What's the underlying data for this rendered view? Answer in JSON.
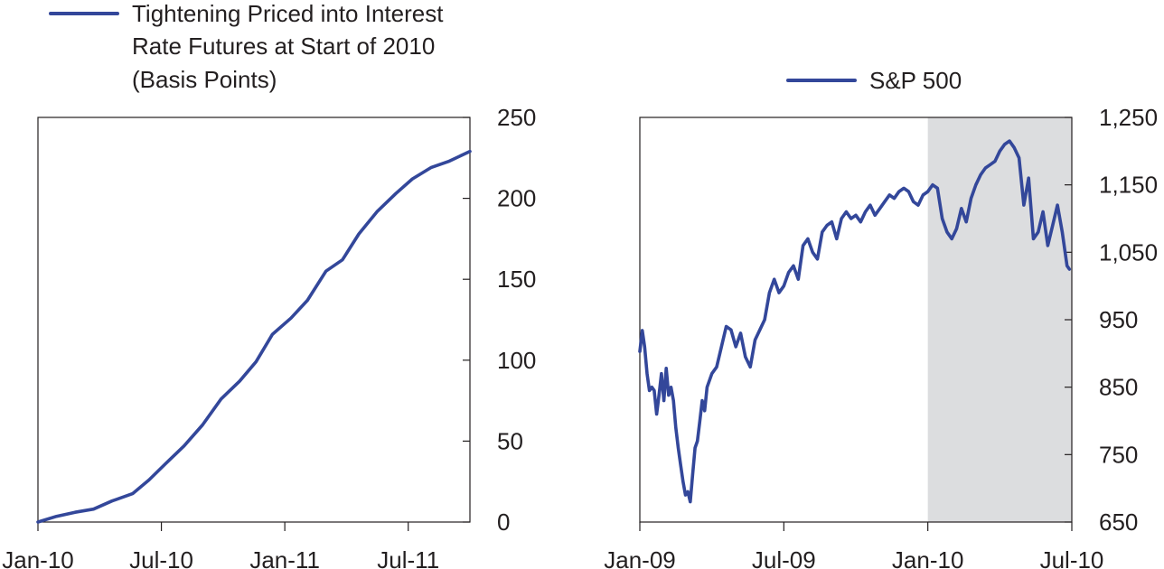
{
  "colors": {
    "series": "#33479a",
    "shade": "#dcdddf",
    "axis": "#231f20"
  },
  "chart_data": [
    {
      "type": "line",
      "title": "",
      "xlabel": "",
      "ylabel": "",
      "x_ticks": [
        "Jan-10",
        "Jul-10",
        "Jan-11",
        "Jul-11"
      ],
      "x_tick_months": [
        0,
        6,
        12,
        18
      ],
      "xlim_months": [
        0,
        21
      ],
      "ylim": [
        0,
        250
      ],
      "y_ticks": [
        0,
        50,
        100,
        150,
        200,
        250
      ],
      "y_tick_labels": [
        "0",
        "50",
        "100",
        "150",
        "200",
        "250"
      ],
      "y_axis_side": "right",
      "legend_position": "top-left",
      "legend_lines": [
        "Tightening Priced into Interest",
        "Rate Futures at Start of 2010",
        "(Basis Points)"
      ],
      "series": [
        {
          "name": "Tightening Priced into Interest Rate Futures at Start of 2010 (Basis Points)",
          "x_months": [
            0,
            0.9,
            1.8,
            2.7,
            3.6,
            4.6,
            5.4,
            6.2,
            7.1,
            8.0,
            8.9,
            9.8,
            10.6,
            11.4,
            12.3,
            13.1,
            14.0,
            14.8,
            15.6,
            16.5,
            17.4,
            18.2,
            19.1,
            20.0,
            21.0
          ],
          "values": [
            0,
            3.5,
            6,
            8,
            13,
            17.5,
            26,
            36,
            47,
            60,
            76,
            87,
            99,
            116,
            126,
            137,
            155,
            162,
            178,
            192,
            203,
            212,
            219,
            223,
            229
          ]
        }
      ]
    },
    {
      "type": "line",
      "title": "",
      "xlabel": "",
      "ylabel": "",
      "x_ticks": [
        "Jan-09",
        "Jul-09",
        "Jan-10",
        "Jul-10"
      ],
      "x_tick_months": [
        0,
        6,
        12,
        18
      ],
      "xlim_months": [
        0,
        18
      ],
      "ylim": [
        650,
        1250
      ],
      "y_ticks": [
        650,
        750,
        850,
        950,
        1050,
        1150,
        1250
      ],
      "y_tick_labels": [
        "650",
        "750",
        "850",
        "950",
        "1,050",
        "1,150",
        "1,250"
      ],
      "y_axis_side": "right",
      "legend_position": "top-center",
      "shaded_region_months": [
        12,
        18
      ],
      "series": [
        {
          "name": "S&P 500",
          "x_months": [
            0,
            0.1,
            0.2,
            0.3,
            0.4,
            0.5,
            0.6,
            0.7,
            0.8,
            0.9,
            1.0,
            1.1,
            1.2,
            1.3,
            1.4,
            1.5,
            1.6,
            1.7,
            1.8,
            1.9,
            2.0,
            2.1,
            2.2,
            2.3,
            2.4,
            2.5,
            2.6,
            2.7,
            2.8,
            3.0,
            3.2,
            3.4,
            3.6,
            3.8,
            4.0,
            4.2,
            4.4,
            4.6,
            4.8,
            5.0,
            5.2,
            5.4,
            5.6,
            5.8,
            6.0,
            6.2,
            6.4,
            6.6,
            6.8,
            7.0,
            7.2,
            7.4,
            7.6,
            7.8,
            8.0,
            8.2,
            8.4,
            8.6,
            8.8,
            9.0,
            9.2,
            9.4,
            9.6,
            9.8,
            10.0,
            10.2,
            10.4,
            10.6,
            10.8,
            11.0,
            11.2,
            11.4,
            11.6,
            11.8,
            12.0,
            12.2,
            12.4,
            12.6,
            12.8,
            13.0,
            13.2,
            13.4,
            13.6,
            13.8,
            14.0,
            14.2,
            14.4,
            14.6,
            14.8,
            15.0,
            15.2,
            15.4,
            15.6,
            15.8,
            16.0,
            16.2,
            16.4,
            16.6,
            16.8,
            17.0,
            17.2,
            17.4,
            17.6,
            17.8,
            17.9
          ],
          "values": [
            903,
            934,
            910,
            870,
            845,
            850,
            845,
            810,
            838,
            870,
            830,
            878,
            838,
            850,
            830,
            790,
            760,
            735,
            710,
            690,
            695,
            680,
            720,
            760,
            770,
            800,
            830,
            815,
            850,
            870,
            880,
            910,
            940,
            935,
            910,
            930,
            895,
            880,
            920,
            935,
            950,
            990,
            1010,
            990,
            1000,
            1020,
            1030,
            1010,
            1060,
            1070,
            1050,
            1040,
            1080,
            1090,
            1095,
            1070,
            1100,
            1110,
            1100,
            1105,
            1095,
            1110,
            1120,
            1105,
            1115,
            1125,
            1135,
            1130,
            1140,
            1145,
            1140,
            1125,
            1120,
            1135,
            1140,
            1150,
            1145,
            1100,
            1080,
            1070,
            1085,
            1115,
            1095,
            1130,
            1150,
            1165,
            1175,
            1180,
            1185,
            1200,
            1210,
            1215,
            1205,
            1190,
            1120,
            1160,
            1070,
            1080,
            1110,
            1060,
            1090,
            1120,
            1080,
            1030,
            1025
          ]
        }
      ]
    }
  ]
}
